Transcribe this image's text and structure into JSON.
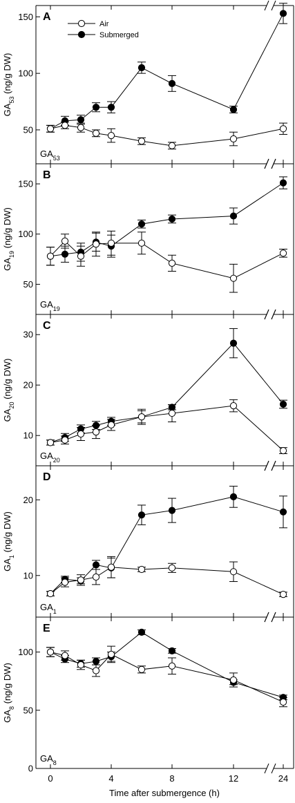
{
  "figure": {
    "xlabel": "Time after submergence (h)",
    "legend": [
      "Air",
      "Submerged"
    ],
    "x_ticks": [
      0,
      4,
      8,
      12,
      24
    ],
    "colors": {
      "air_fill": "#ffffff",
      "submerged_fill": "#000000",
      "line": "#000000"
    }
  },
  "chart_data": [
    {
      "type": "line",
      "panel": "A",
      "inner_label": {
        "base": "GA",
        "sub": "53"
      },
      "ylabel": {
        "base": "GA",
        "sub": "53",
        "rest": " (ng/g DW)"
      },
      "ylim": [
        20,
        160
      ],
      "yticks": [
        50,
        100,
        150
      ],
      "legend_position": "top-left",
      "x_axis_break": true,
      "series": [
        {
          "name": "Air",
          "marker": "open-circle",
          "points": [
            {
              "x": 0,
              "y": 51,
              "err": 3
            },
            {
              "x": 1,
              "y": 54,
              "err": 3
            },
            {
              "x": 2,
              "y": 52,
              "err": 4
            },
            {
              "x": 3,
              "y": 47,
              "err": 3
            },
            {
              "x": 4,
              "y": 45,
              "err": 6
            },
            {
              "x": 6,
              "y": 40,
              "err": 3
            },
            {
              "x": 8,
              "y": 36,
              "err": 3
            },
            {
              "x": 12,
              "y": 42,
              "err": 6
            },
            {
              "x": 24,
              "y": 51,
              "err": 5
            }
          ]
        },
        {
          "name": "Submerged",
          "marker": "filled-circle",
          "points": [
            {
              "x": 0,
              "y": 51,
              "err": 3
            },
            {
              "x": 1,
              "y": 58,
              "err": 4
            },
            {
              "x": 2,
              "y": 59,
              "err": 4
            },
            {
              "x": 3,
              "y": 70,
              "err": 4
            },
            {
              "x": 4,
              "y": 70,
              "err": 5
            },
            {
              "x": 6,
              "y": 105,
              "err": 5
            },
            {
              "x": 8,
              "y": 91,
              "err": 7
            },
            {
              "x": 12,
              "y": 68,
              "err": 3
            },
            {
              "x": 24,
              "y": 153,
              "err": 9
            }
          ]
        }
      ]
    },
    {
      "type": "line",
      "panel": "B",
      "inner_label": {
        "base": "GA",
        "sub": "19"
      },
      "ylabel": {
        "base": "GA",
        "sub": "19",
        "rest": " (ng/g DW)"
      },
      "ylim": [
        20,
        170
      ],
      "yticks": [
        50,
        100,
        150
      ],
      "x_axis_break": true,
      "series": [
        {
          "name": "Air",
          "marker": "open-circle",
          "points": [
            {
              "x": 0,
              "y": 78,
              "err": 9
            },
            {
              "x": 1,
              "y": 93,
              "err": 7
            },
            {
              "x": 2,
              "y": 78,
              "err": 10
            },
            {
              "x": 3,
              "y": 90,
              "err": 12
            },
            {
              "x": 4,
              "y": 91,
              "err": 12
            },
            {
              "x": 6,
              "y": 91,
              "err": 11
            },
            {
              "x": 8,
              "y": 71,
              "err": 8
            },
            {
              "x": 12,
              "y": 56,
              "err": 14
            },
            {
              "x": 24,
              "y": 81,
              "err": 4
            }
          ]
        },
        {
          "name": "Submerged",
          "marker": "filled-circle",
          "points": [
            {
              "x": 0,
              "y": 78,
              "err": 9
            },
            {
              "x": 1,
              "y": 80,
              "err": 8
            },
            {
              "x": 2,
              "y": 82,
              "err": 9
            },
            {
              "x": 3,
              "y": 92,
              "err": 9
            },
            {
              "x": 4,
              "y": 88,
              "err": 11
            },
            {
              "x": 6,
              "y": 110,
              "err": 4
            },
            {
              "x": 8,
              "y": 115,
              "err": 4
            },
            {
              "x": 12,
              "y": 118,
              "err": 8
            },
            {
              "x": 24,
              "y": 151,
              "err": 6
            }
          ]
        }
      ]
    },
    {
      "type": "line",
      "panel": "C",
      "inner_label": {
        "base": "GA",
        "sub": "20"
      },
      "ylabel": {
        "base": "GA",
        "sub": "20",
        "rest": " (ng/g DW)"
      },
      "ylim": [
        4,
        34
      ],
      "yticks": [
        10,
        20,
        30
      ],
      "x_axis_break": true,
      "series": [
        {
          "name": "Air",
          "marker": "open-circle",
          "points": [
            {
              "x": 0,
              "y": 8.6,
              "err": 0.5
            },
            {
              "x": 1,
              "y": 9.1,
              "err": 0.8
            },
            {
              "x": 2,
              "y": 10.3,
              "err": 1.3
            },
            {
              "x": 3,
              "y": 10.7,
              "err": 1.3
            },
            {
              "x": 4,
              "y": 12.1,
              "err": 1.1
            },
            {
              "x": 6,
              "y": 13.7,
              "err": 1.5
            },
            {
              "x": 8,
              "y": 14.4,
              "err": 1.7
            },
            {
              "x": 12,
              "y": 15.9,
              "err": 1.2
            },
            {
              "x": 24,
              "y": 7.0,
              "err": 0.6
            }
          ]
        },
        {
          "name": "Submerged",
          "marker": "filled-circle",
          "points": [
            {
              "x": 0,
              "y": 8.6,
              "err": 0.5
            },
            {
              "x": 1,
              "y": 9.6,
              "err": 0.8
            },
            {
              "x": 2,
              "y": 11.3,
              "err": 0.8
            },
            {
              "x": 3,
              "y": 12.0,
              "err": 0.8
            },
            {
              "x": 4,
              "y": 12.8,
              "err": 0.8
            },
            {
              "x": 6,
              "y": 13.7,
              "err": 1.2
            },
            {
              "x": 8,
              "y": 15.6,
              "err": 0.5
            },
            {
              "x": 12,
              "y": 28.3,
              "err": 2.9
            },
            {
              "x": 24,
              "y": 16.2,
              "err": 0.8
            }
          ]
        }
      ]
    },
    {
      "type": "line",
      "panel": "D",
      "inner_label": {
        "base": "GA",
        "sub": "1"
      },
      "ylabel": {
        "base": "GA",
        "sub": "1",
        "rest": " (ng/g DW)"
      },
      "ylim": [
        4.5,
        24.5
      ],
      "yticks": [
        10,
        20
      ],
      "x_axis_break": true,
      "series": [
        {
          "name": "Air",
          "marker": "open-circle",
          "points": [
            {
              "x": 0,
              "y": 7.6,
              "err": 0.3
            },
            {
              "x": 1,
              "y": 9.1,
              "err": 0.6
            },
            {
              "x": 2,
              "y": 9.4,
              "err": 0.7
            },
            {
              "x": 3,
              "y": 9.8,
              "err": 1.0
            },
            {
              "x": 4,
              "y": 11.1,
              "err": 1.4
            },
            {
              "x": 6,
              "y": 10.8,
              "err": 0.3
            },
            {
              "x": 8,
              "y": 11.0,
              "err": 0.6
            },
            {
              "x": 12,
              "y": 10.5,
              "err": 1.3
            },
            {
              "x": 24,
              "y": 7.5,
              "err": 0.3
            }
          ]
        },
        {
          "name": "Submerged",
          "marker": "filled-circle",
          "points": [
            {
              "x": 0,
              "y": 7.6,
              "err": 0.3
            },
            {
              "x": 1,
              "y": 9.5,
              "err": 0.4
            },
            {
              "x": 2,
              "y": 9.3,
              "err": 0.4
            },
            {
              "x": 3,
              "y": 11.4,
              "err": 0.6
            },
            {
              "x": 4,
              "y": 11.0,
              "err": 1.3
            },
            {
              "x": 6,
              "y": 18.0,
              "err": 1.3
            },
            {
              "x": 8,
              "y": 18.6,
              "err": 1.6
            },
            {
              "x": 12,
              "y": 20.4,
              "err": 1.4
            },
            {
              "x": 24,
              "y": 18.4,
              "err": 2.1
            }
          ]
        }
      ]
    },
    {
      "type": "line",
      "panel": "E",
      "inner_label": {
        "base": "GA",
        "sub": "8"
      },
      "ylabel": {
        "base": "GA",
        "sub": "8",
        "rest": " (ng/g DW)"
      },
      "ylim": [
        0,
        130
      ],
      "yticks": [
        0,
        50,
        100
      ],
      "x_axis_break": true,
      "series": [
        {
          "name": "Air",
          "marker": "open-circle",
          "points": [
            {
              "x": 0,
              "y": 100,
              "err": 4
            },
            {
              "x": 1,
              "y": 97,
              "err": 4
            },
            {
              "x": 2,
              "y": 89,
              "err": 4
            },
            {
              "x": 3,
              "y": 84,
              "err": 5
            },
            {
              "x": 4,
              "y": 98,
              "err": 7
            },
            {
              "x": 6,
              "y": 85,
              "err": 3
            },
            {
              "x": 8,
              "y": 88,
              "err": 7
            },
            {
              "x": 12,
              "y": 76,
              "err": 6
            },
            {
              "x": 24,
              "y": 57,
              "err": 4
            }
          ]
        },
        {
          "name": "Submerged",
          "marker": "filled-circle",
          "points": [
            {
              "x": 0,
              "y": 100,
              "err": 4
            },
            {
              "x": 1,
              "y": 94,
              "err": 3
            },
            {
              "x": 2,
              "y": 90,
              "err": 3
            },
            {
              "x": 3,
              "y": 92,
              "err": 3
            },
            {
              "x": 4,
              "y": 96,
              "err": 4
            },
            {
              "x": 6,
              "y": 117,
              "err": 2
            },
            {
              "x": 8,
              "y": 101,
              "err": 2
            },
            {
              "x": 12,
              "y": 74,
              "err": 2
            },
            {
              "x": 24,
              "y": 61,
              "err": 2
            }
          ]
        }
      ]
    }
  ]
}
